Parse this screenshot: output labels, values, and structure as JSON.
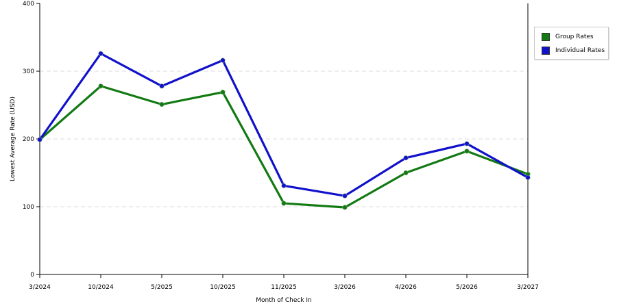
{
  "chart_data": {
    "type": "line",
    "xlabel": "Month of Check In",
    "ylabel": "Lowest Average Rate (USD)",
    "categories": [
      "3/2024",
      "10/2024",
      "5/2025",
      "10/2025",
      "11/2025",
      "3/2026",
      "4/2026",
      "5/2026",
      "3/2027"
    ],
    "ylim": [
      0,
      400
    ],
    "yticks": [
      "0",
      "100",
      "200",
      "300",
      "400"
    ],
    "grid": true,
    "legend_position": "right",
    "series": [
      {
        "name": "Group Rates",
        "color": "#127a12",
        "values": [
          199,
          278,
          251,
          269,
          105,
          99,
          150,
          182,
          148
        ]
      },
      {
        "name": "Individual Rates",
        "color": "#1111cc",
        "values": [
          199,
          326,
          278,
          316,
          131,
          116,
          172,
          193,
          143
        ]
      }
    ]
  }
}
